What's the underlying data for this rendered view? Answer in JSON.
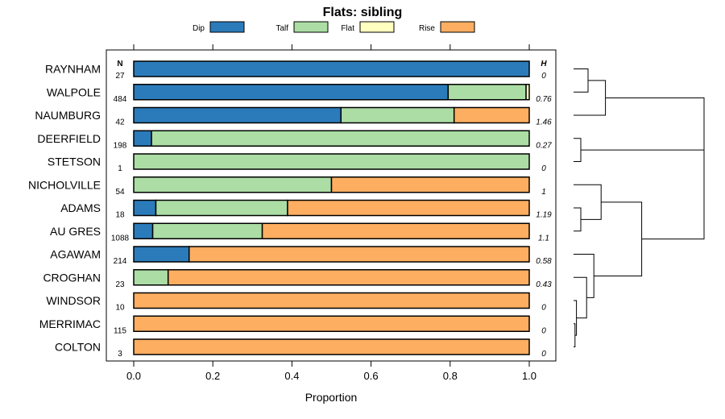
{
  "chart_data": {
    "type": "bar",
    "orientation": "horizontal-stacked",
    "title": "Flats: sibling",
    "xlabel": "Proportion",
    "ylabel": "",
    "xlim": [
      0,
      1
    ],
    "x_ticks": [
      "0.0",
      "0.2",
      "0.4",
      "0.6",
      "0.8",
      "1.0"
    ],
    "x_tick_values": [
      0,
      0.2,
      0.4,
      0.6,
      0.8,
      1.0
    ],
    "legend": [
      {
        "name": "Dip",
        "color": "#2b7bba"
      },
      {
        "name": "Talf",
        "color": "#abdda4"
      },
      {
        "name": "Flat",
        "color": "#ffffbf"
      },
      {
        "name": "Rise",
        "color": "#fdae61"
      }
    ],
    "n_header": "N",
    "h_header": "H",
    "categories": [
      "RAYNHAM",
      "WALPOLE",
      "NAUMBURG",
      "DEERFIELD",
      "STETSON",
      "NICHOLVILLE",
      "ADAMS",
      "AU GRES",
      "AGAWAM",
      "CROGHAN",
      "WINDSOR",
      "MERRIMAC",
      "COLTON"
    ],
    "n_values": [
      "27",
      "484",
      "42",
      "198",
      "1",
      "54",
      "18",
      "1088",
      "214",
      "23",
      "10",
      "115",
      "3"
    ],
    "h_values": [
      "0",
      "0.76",
      "1.46",
      "0.27",
      "0",
      "1",
      "1.19",
      "1.1",
      "0.58",
      "0.43",
      "0",
      "0",
      "0"
    ],
    "series": [
      {
        "name": "Dip",
        "values": [
          1.0,
          0.795,
          0.524,
          0.045,
          0,
          0,
          0.056,
          0.048,
          0.14,
          0,
          0,
          0,
          0
        ]
      },
      {
        "name": "Talf",
        "values": [
          0,
          0.197,
          0.286,
          0.955,
          1.0,
          0.5,
          0.333,
          0.277,
          0,
          0.087,
          0,
          0,
          0
        ]
      },
      {
        "name": "Flat",
        "values": [
          0,
          0.008,
          0,
          0,
          0,
          0,
          0,
          0,
          0,
          0,
          0,
          0,
          0
        ]
      },
      {
        "name": "Rise",
        "values": [
          0,
          0,
          0.19,
          0,
          0,
          0.5,
          0.611,
          0.675,
          0.86,
          0.913,
          1.0,
          1.0,
          1.0
        ]
      }
    ],
    "dendrogram": {
      "merges": [
        {
          "left": 0,
          "right": 1,
          "height": 0.1
        },
        {
          "left": -1,
          "right": 2,
          "height": 0.22
        },
        {
          "left": 3,
          "right": 4,
          "height": 0.05
        },
        {
          "left": 6,
          "right": 7,
          "height": 0.05
        },
        {
          "left": 5,
          "right": -4,
          "height": 0.19
        },
        {
          "left": 11,
          "right": 12,
          "height": 0.01
        },
        {
          "left": 10,
          "right": -6,
          "height": 0.02
        },
        {
          "left": 9,
          "right": -7,
          "height": 0.09
        },
        {
          "left": 8,
          "right": -8,
          "height": 0.14
        },
        {
          "left": -5,
          "right": -9,
          "height": 0.47
        },
        {
          "left": -3,
          "right": -10,
          "height": 0.9
        },
        {
          "left": -2,
          "right": -11,
          "height": 0.9
        }
      ]
    }
  }
}
